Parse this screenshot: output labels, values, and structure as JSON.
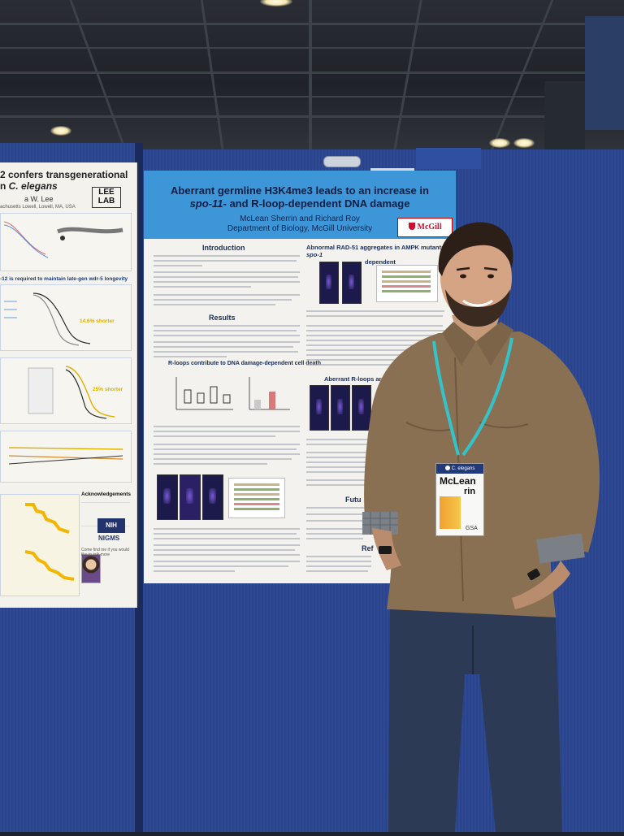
{
  "left_poster": {
    "title_line1": "2 confers transgenerational",
    "title_line2a": "n ",
    "title_line2b": "C. elegans",
    "authors": "a W. Lee",
    "affiliation": "achusetts Lowell, Lowell, MA, USA",
    "lab_logo": "LEE LAB",
    "section_wdr5": "-12 is required to maintain late-gen wdr-5 longevity",
    "shorter_14": "14.6% shorter",
    "shorter_25": "25% shorter",
    "ack_title": "Acknowledgements",
    "nih_label": "NIH",
    "nigms_label": "NIGMS",
    "talk_line": "Come find me if you would like to talk more"
  },
  "main_poster": {
    "title_line1": "Aberrant germline H3K4me3 leads to an increase in",
    "title_line2_italic": "spo-11",
    "title_line2_rest": "- and R-loop-dependent DNA damage",
    "authors": "McLean Sherrin and Richard Roy",
    "affiliation": "Department of Biology, McGill University",
    "logo": "McGill",
    "section_intro": "Introduction",
    "section_results": "Results",
    "section_rloops": "R-loops contribute to DNA damage-dependent cell death",
    "section_rad51_a": "Abnormal RAD-51 aggregates in AMPK mutants are ",
    "section_rad51_b": "spo-1",
    "section_rad51_c": "dependent",
    "section_aberrant": "Aberrant R-loops are also spe",
    "section_future": "Futu",
    "section_refs": "Ref"
  },
  "badge": {
    "org": "C. elegans",
    "name_line1": "McLean",
    "name_line2": "rin",
    "footer": "GSA"
  },
  "colors": {
    "booth_blue": "#2a4590",
    "poster_header": "#3d96d8",
    "shirt": "#8a7053",
    "lanyard": "#33c3c8",
    "jeans": "#2c3a55"
  }
}
